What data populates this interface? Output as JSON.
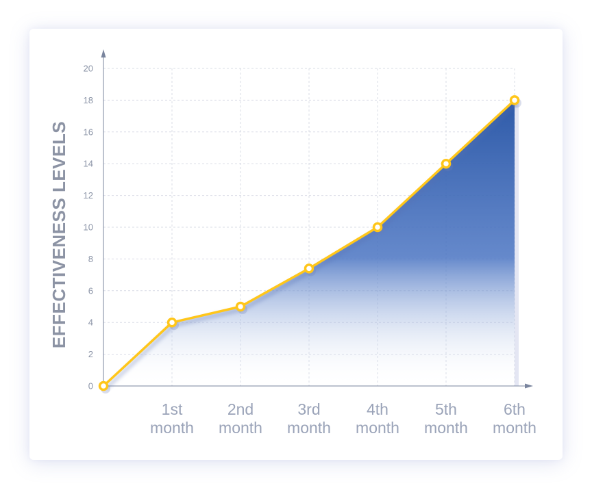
{
  "chart_data": {
    "type": "area",
    "title": "",
    "xlabel": "",
    "ylabel": "EFFECTIVENESS LEVELS",
    "categories": [
      "",
      "1st month",
      "2nd month",
      "3rd month",
      "4th month",
      "5th month",
      "6th month"
    ],
    "category_lines": [
      [
        "",
        ""
      ],
      [
        "1st",
        "month"
      ],
      [
        "2nd",
        "month"
      ],
      [
        "3rd",
        "month"
      ],
      [
        "4th",
        "month"
      ],
      [
        "5th",
        "month"
      ],
      [
        "6th",
        "month"
      ]
    ],
    "series": [
      {
        "values": [
          0,
          4,
          5,
          7.4,
          10,
          14,
          18
        ]
      }
    ],
    "ylim": [
      0,
      20
    ],
    "yticks": [
      "0",
      "2",
      "4",
      "6",
      "8",
      "10",
      "12",
      "14",
      "16",
      "18",
      "20"
    ],
    "grid": true,
    "legend": "none",
    "colors": {
      "line": "#ffc61a",
      "area_top": "#2e5aa8",
      "area_bottom": "#ffffff",
      "marker_fill": "#ffffff",
      "grid": "#d9dce6",
      "axis": "#7a859e"
    }
  }
}
